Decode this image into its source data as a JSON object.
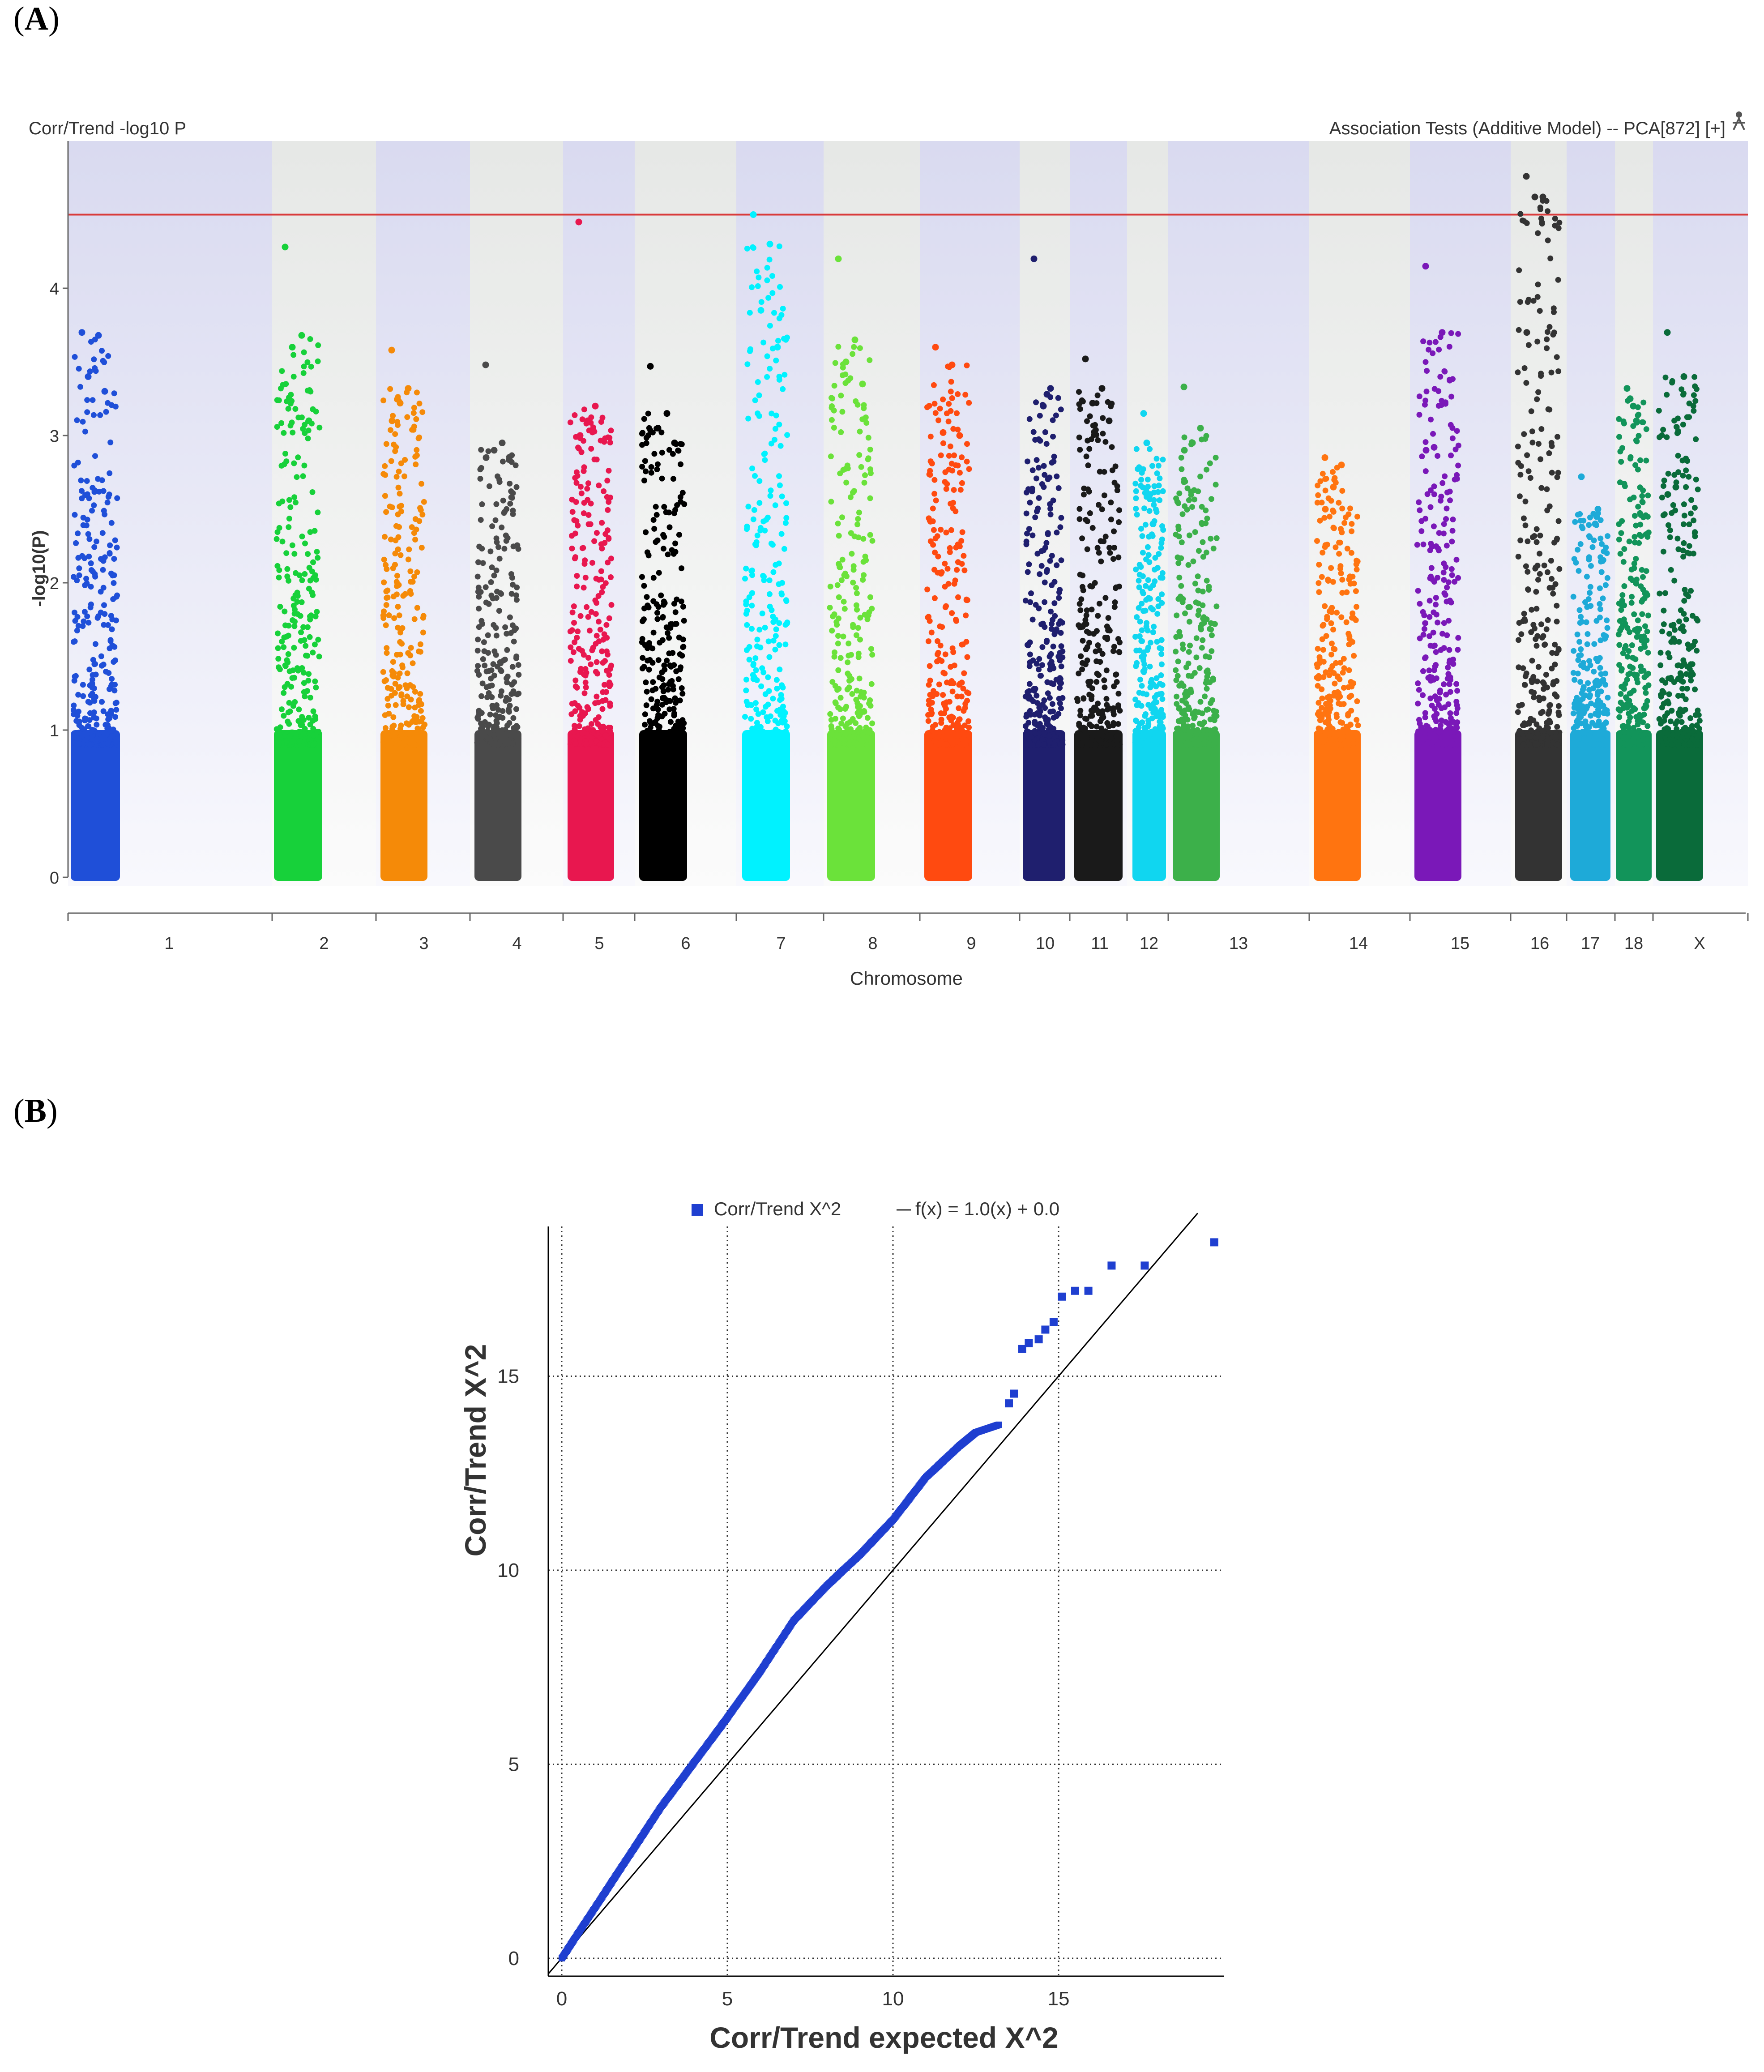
{
  "figure": {
    "panel_a_label": "A",
    "panel_b_label": "B"
  },
  "chart_data": [
    {
      "type": "scatter",
      "subtype": "manhattan",
      "title": "Corr/Trend -log10 P",
      "top_right_caption": "Association Tests (Additive Model) -- PCA[872] [+]",
      "ylabel": "-log10(P)",
      "xlabel": "Chromosome",
      "ylim": [
        0,
        5
      ],
      "yticks": [
        0,
        1,
        2,
        3,
        4
      ],
      "significance_threshold": 4.5,
      "threshold_color": "#d93b3b",
      "chromosomes": [
        {
          "name": "1",
          "color": "#1f4fd8",
          "band": "lavender",
          "max": 3.7,
          "top": [
            3.7,
            3.68,
            3.4,
            3.3
          ]
        },
        {
          "name": "2",
          "color": "#17d13a",
          "band": "gray",
          "max": 4.28,
          "top": [
            4.28,
            3.68,
            3.6,
            3.1
          ]
        },
        {
          "name": "3",
          "color": "#f58a08",
          "band": "lavender",
          "max": 3.58,
          "top": [
            3.58,
            3.32,
            3.22,
            3.1
          ]
        },
        {
          "name": "4",
          "color": "#4a4a4a",
          "band": "gray",
          "max": 3.48,
          "top": [
            3.48,
            2.95,
            2.9,
            2.85
          ]
        },
        {
          "name": "5",
          "color": "#e8174f",
          "band": "lavender",
          "max": 4.45,
          "top": [
            4.45,
            3.2,
            3.1,
            3.0
          ]
        },
        {
          "name": "6",
          "color": "#000000",
          "band": "gray",
          "max": 3.47,
          "top": [
            3.47,
            3.15,
            3.05,
            2.95
          ]
        },
        {
          "name": "7",
          "color": "#00f2ff",
          "band": "lavender",
          "max": 4.5,
          "top": [
            4.5,
            4.3,
            3.85,
            3.6
          ]
        },
        {
          "name": "8",
          "color": "#6be23a",
          "band": "gray",
          "max": 4.2,
          "top": [
            4.2,
            3.65,
            3.5,
            3.35
          ]
        },
        {
          "name": "9",
          "color": "#ff4a10",
          "band": "lavender",
          "max": 3.6,
          "top": [
            3.6,
            3.48,
            3.02,
            3.0
          ]
        },
        {
          "name": "10",
          "color": "#1f1f6e",
          "band": "gray",
          "max": 4.2,
          "top": [
            4.2,
            3.32,
            3.28,
            3.2
          ]
        },
        {
          "name": "11",
          "color": "#1a1a1a",
          "band": "lavender",
          "max": 3.52,
          "top": [
            3.52,
            3.32,
            3.22,
            3.1
          ]
        },
        {
          "name": "12",
          "color": "#10d6f0",
          "band": "gray",
          "max": 3.15,
          "top": [
            3.15,
            2.95,
            2.6,
            2.4
          ]
        },
        {
          "name": "13",
          "color": "#3cb04a",
          "band": "lavender",
          "max": 3.33,
          "top": [
            3.33,
            3.05,
            2.95,
            2.9
          ]
        },
        {
          "name": "14",
          "color": "#ff7410",
          "band": "gray",
          "max": 2.85,
          "top": [
            2.85,
            2.8,
            2.65,
            2.5
          ]
        },
        {
          "name": "15",
          "color": "#7a18b8",
          "band": "lavender",
          "max": 4.15,
          "top": [
            4.15,
            3.7,
            2.92,
            2.9
          ]
        },
        {
          "name": "16",
          "color": "#333333",
          "band": "gray",
          "max": 4.76,
          "top": [
            4.76,
            4.62,
            4.62,
            3.7
          ]
        },
        {
          "name": "17",
          "color": "#1eaad8",
          "band": "lavender",
          "max": 2.72,
          "top": [
            2.72,
            2.5,
            2.45,
            2.4
          ]
        },
        {
          "name": "18",
          "color": "#12945a",
          "band": "gray",
          "max": 3.32,
          "top": [
            3.32,
            3.25,
            3.2,
            3.1
          ]
        },
        {
          "name": "X",
          "color": "#0a6b3a",
          "band": "lavender",
          "max": 3.7,
          "top": [
            3.7,
            3.4,
            2.65,
            2.6
          ]
        }
      ]
    },
    {
      "type": "scatter",
      "subtype": "qq",
      "legend_series": "Corr/Trend  X^2",
      "legend_line": "f(x) = 1.0(x) + 0.0",
      "xlabel": "Corr/Trend  expected X^2",
      "ylabel": "Corr/Trend  X^2",
      "xlim": [
        -0.4,
        20
      ],
      "ylim": [
        -0.4,
        18.8
      ],
      "xticks": [
        0,
        5,
        10,
        15
      ],
      "yticks": [
        0,
        5,
        10,
        15
      ],
      "series_color": "#1f3fd0",
      "curve_expected": [
        0,
        1,
        2,
        3,
        4,
        5,
        6,
        7,
        8,
        9,
        10,
        11,
        12,
        12.5,
        13.2
      ],
      "curve_observed": [
        0,
        1.3,
        2.6,
        3.9,
        5.05,
        6.2,
        7.4,
        8.7,
        9.6,
        10.4,
        11.3,
        12.4,
        13.2,
        13.55,
        13.75
      ],
      "tail_points": [
        [
          13.5,
          14.3
        ],
        [
          13.65,
          14.55
        ],
        [
          13.9,
          15.7
        ],
        [
          14.1,
          15.85
        ],
        [
          14.4,
          15.95
        ],
        [
          14.6,
          16.2
        ],
        [
          14.85,
          16.4
        ],
        [
          15.1,
          17.05
        ],
        [
          15.5,
          17.2
        ],
        [
          15.9,
          17.2
        ],
        [
          16.6,
          17.85
        ],
        [
          17.6,
          17.85
        ],
        [
          19.7,
          18.45
        ]
      ]
    }
  ]
}
